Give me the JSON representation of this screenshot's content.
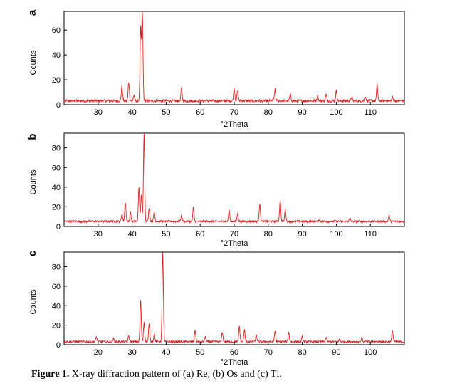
{
  "caption": {
    "label": "Figure 1.",
    "text": " X-ray diffraction pattern of (a) Re, (b) Os and (c) Tl."
  },
  "colors": {
    "trace": "#e02020",
    "axis": "#000000"
  },
  "chart_data": [
    {
      "type": "line",
      "panel_label": "a",
      "xlabel": "°2Theta",
      "ylabel": "Counts",
      "xlim": [
        20,
        120
      ],
      "ylim": [
        0,
        75
      ],
      "xticks": [
        30,
        40,
        50,
        60,
        70,
        80,
        90,
        100,
        110
      ],
      "yticks": [
        0,
        20,
        40,
        60
      ],
      "baseline": 2,
      "peaks": [
        {
          "x": 37.0,
          "y": 14
        },
        {
          "x": 39.0,
          "y": 17
        },
        {
          "x": 40.5,
          "y": 6
        },
        {
          "x": 42.5,
          "y": 60
        },
        {
          "x": 43.0,
          "y": 76
        },
        {
          "x": 54.5,
          "y": 12
        },
        {
          "x": 70.0,
          "y": 12
        },
        {
          "x": 71.0,
          "y": 10
        },
        {
          "x": 82.0,
          "y": 11
        },
        {
          "x": 86.5,
          "y": 7
        },
        {
          "x": 94.5,
          "y": 6
        },
        {
          "x": 97.0,
          "y": 7
        },
        {
          "x": 100.0,
          "y": 10
        },
        {
          "x": 104.5,
          "y": 5
        },
        {
          "x": 108.5,
          "y": 6
        },
        {
          "x": 112.0,
          "y": 15
        },
        {
          "x": 116.5,
          "y": 5
        }
      ]
    },
    {
      "type": "line",
      "panel_label": "b",
      "xlabel": "°2Theta",
      "ylabel": "Counts",
      "xlim": [
        20,
        120
      ],
      "ylim": [
        0,
        95
      ],
      "xticks": [
        30,
        40,
        50,
        60,
        70,
        80,
        90,
        100,
        110
      ],
      "yticks": [
        0,
        20,
        40,
        60,
        80
      ],
      "baseline": 4,
      "peaks": [
        {
          "x": 37.0,
          "y": 12
        },
        {
          "x": 38.0,
          "y": 24
        },
        {
          "x": 39.5,
          "y": 14
        },
        {
          "x": 42.0,
          "y": 38
        },
        {
          "x": 42.7,
          "y": 30
        },
        {
          "x": 43.5,
          "y": 96
        },
        {
          "x": 45.0,
          "y": 18
        },
        {
          "x": 46.5,
          "y": 14
        },
        {
          "x": 54.5,
          "y": 10
        },
        {
          "x": 58.0,
          "y": 18
        },
        {
          "x": 68.5,
          "y": 16
        },
        {
          "x": 71.0,
          "y": 12
        },
        {
          "x": 77.5,
          "y": 22
        },
        {
          "x": 83.5,
          "y": 26
        },
        {
          "x": 85.0,
          "y": 16
        },
        {
          "x": 95.0,
          "y": 6
        },
        {
          "x": 104.0,
          "y": 7
        },
        {
          "x": 115.5,
          "y": 10
        }
      ]
    },
    {
      "type": "line",
      "panel_label": "c",
      "xlabel": "°2Theta",
      "ylabel": "Counts",
      "xlim": [
        10,
        110
      ],
      "ylim": [
        0,
        95
      ],
      "xticks": [
        20,
        30,
        40,
        50,
        60,
        70,
        80,
        90,
        100
      ],
      "yticks": [
        0,
        20,
        40,
        60,
        80
      ],
      "baseline": 2,
      "peaks": [
        {
          "x": 19.5,
          "y": 7
        },
        {
          "x": 24.5,
          "y": 5
        },
        {
          "x": 29.0,
          "y": 8
        },
        {
          "x": 32.5,
          "y": 45
        },
        {
          "x": 33.5,
          "y": 22
        },
        {
          "x": 35.0,
          "y": 20
        },
        {
          "x": 36.5,
          "y": 10
        },
        {
          "x": 39.0,
          "y": 94
        },
        {
          "x": 48.5,
          "y": 14
        },
        {
          "x": 51.5,
          "y": 7
        },
        {
          "x": 56.5,
          "y": 12
        },
        {
          "x": 61.5,
          "y": 18
        },
        {
          "x": 63.0,
          "y": 14
        },
        {
          "x": 66.5,
          "y": 9
        },
        {
          "x": 72.0,
          "y": 13
        },
        {
          "x": 76.0,
          "y": 12
        },
        {
          "x": 80.0,
          "y": 7
        },
        {
          "x": 87.0,
          "y": 6
        },
        {
          "x": 91.0,
          "y": 5
        },
        {
          "x": 97.5,
          "y": 6
        },
        {
          "x": 106.5,
          "y": 14
        }
      ]
    }
  ]
}
